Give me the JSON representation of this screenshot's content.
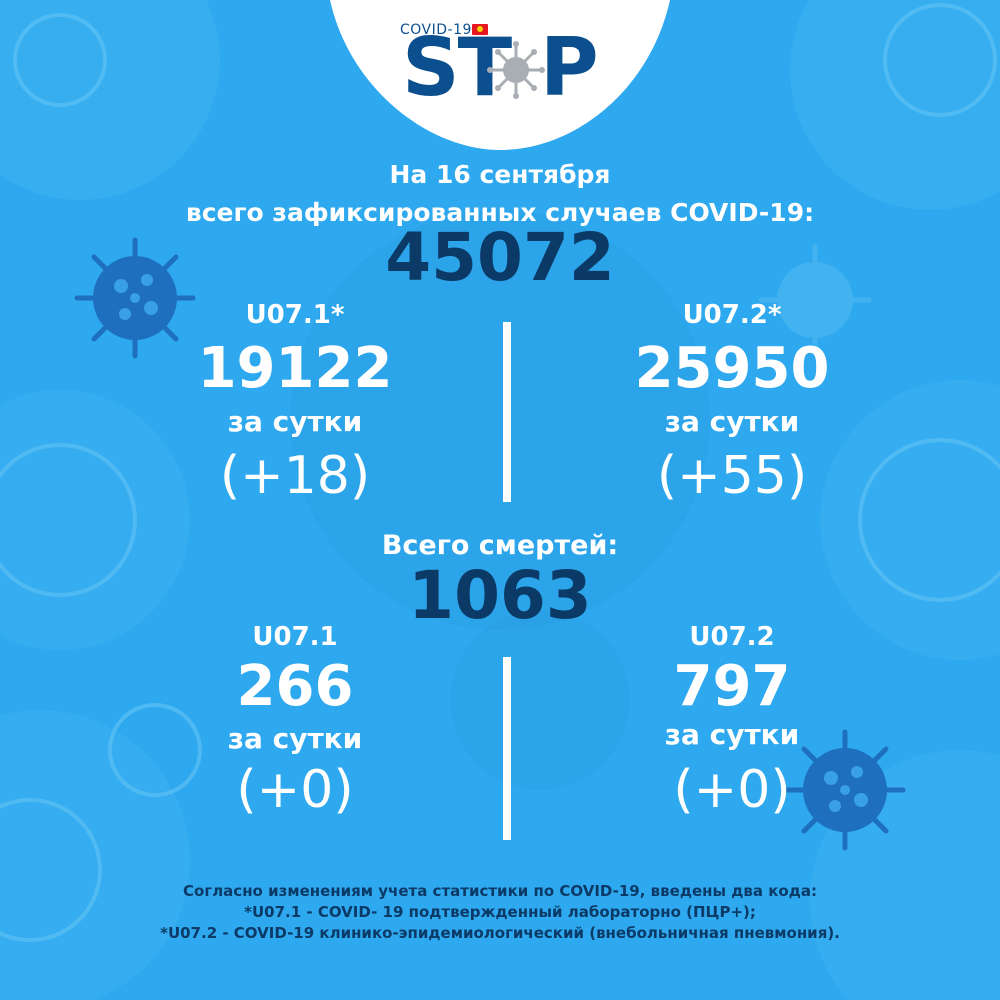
{
  "logo": {
    "tag": "COVID-19",
    "word_left": "ST",
    "word_right": "P"
  },
  "header": {
    "date": "На 16 сентября",
    "total_label": "всего зафиксированных случаев COVID-19:",
    "total_value": "45072"
  },
  "cases": {
    "left": {
      "code": "U07.1*",
      "value": "19122",
      "per_day_label": "за сутки",
      "delta": "(+18)"
    },
    "right": {
      "code": "U07.2*",
      "value": "25950",
      "per_day_label": "за сутки",
      "delta": "(+55)"
    }
  },
  "deaths": {
    "label": "Всего смертей:",
    "value": "1063",
    "left": {
      "code": "U07.1",
      "value": "266",
      "per_day_label": "за сутки",
      "delta": "(+0)"
    },
    "right": {
      "code": "U07.2",
      "value": "797",
      "per_day_label": "за сутки",
      "delta": "(+0)"
    }
  },
  "footnote": {
    "line1": "Согласно изменениям учета статистики по COVID-19, введены два кода:",
    "line2": "*U07.1 - COVID- 19 подтвержденный лабораторно (ПЦР+);",
    "line3": "*U07.2 - COVID-19 клинико-эпидемиологический (внебольничная пневмония)."
  },
  "colors": {
    "background": "#2ea8ee",
    "text_white": "#ffffff",
    "text_navy": "#0c3a66",
    "logo_blue": "#0c4f8f",
    "virus_dark": "#1f6fbf"
  },
  "icons": [
    "virus-icon",
    "kyrgyzstan-flag-icon"
  ]
}
